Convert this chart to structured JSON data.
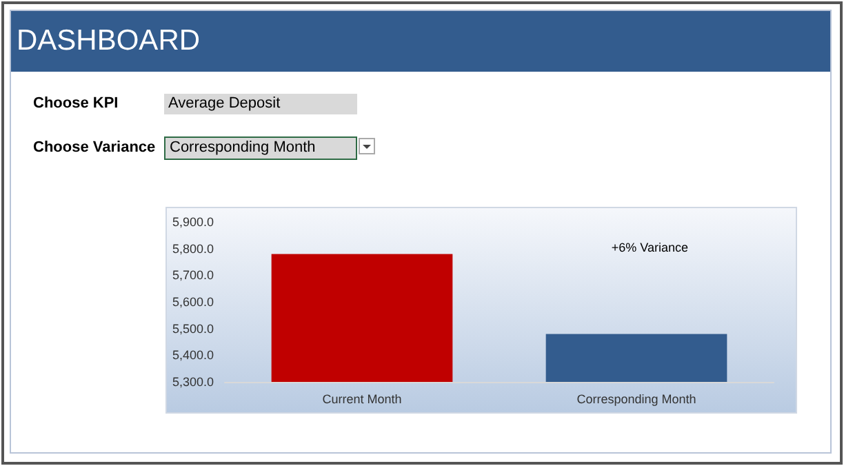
{
  "chart_data": {
    "type": "bar",
    "title": "DASHBOARD",
    "annotations": [
      "Choose KPI",
      "Average Deposit",
      "Choose Variance",
      "Corresponding Month",
      "+6% Variance"
    ],
    "categories": [
      "Current Month",
      "Corresponding Month"
    ],
    "values": [
      5780,
      5480
    ],
    "colors": [
      "#c00000",
      "#335c8e"
    ],
    "ylim": [
      5300,
      5900
    ],
    "yticks": [
      {
        "value": 5300,
        "label": "5,300.0"
      },
      {
        "value": 5400,
        "label": "5,400.0"
      },
      {
        "value": 5500,
        "label": "5,500.0"
      },
      {
        "value": 5600,
        "label": "5,600.0"
      },
      {
        "value": 5700,
        "label": "5,700.0"
      },
      {
        "value": 5800,
        "label": "5,800.0"
      },
      {
        "value": 5900,
        "label": "5,900.0"
      }
    ],
    "grid": false
  }
}
